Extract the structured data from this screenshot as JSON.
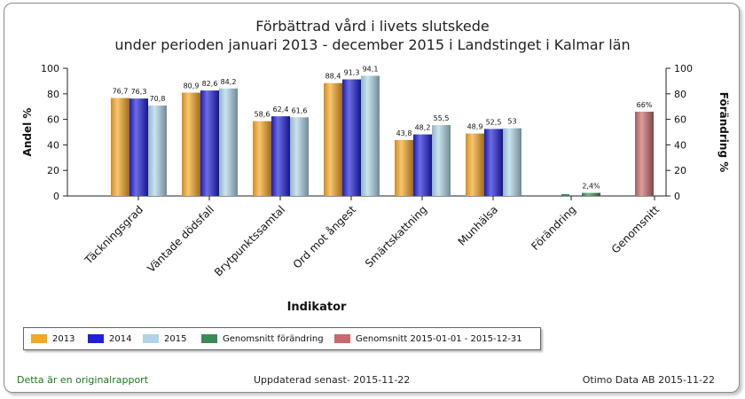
{
  "chart_data": {
    "type": "bar",
    "title": "Förbättrad vård i livets slutskede",
    "subtitle": "under perioden januari 2013 - december 2015 i   Landstinget i Kalmar län",
    "xlabel": "Indikator",
    "ylabel": "Andel %",
    "ylabel_right": "Förändring %",
    "ylim": [
      0,
      100
    ],
    "yticks": [
      0,
      20,
      40,
      60,
      80,
      100
    ],
    "grid": false,
    "legend_position": "bottom",
    "categories": [
      "Täckningsgrad",
      "Väntade dödsfall",
      "Brytpunktssamtal",
      "Ord mot ångest",
      "Smärtskattning",
      "Munhälsa"
    ],
    "series": [
      {
        "name": "2013",
        "color": "#f5a623",
        "values": [
          76.7,
          80.9,
          58.6,
          88.4,
          43.8,
          48.9
        ],
        "labels": [
          "76,7",
          "80,9",
          "58,6",
          "88,4",
          "43,8",
          "48,9"
        ]
      },
      {
        "name": "2014",
        "color": "#1f1fd6",
        "values": [
          76.3,
          82.6,
          62.4,
          91.3,
          48.2,
          52.5
        ],
        "labels": [
          "76,3",
          "82,6",
          "62,4",
          "91,3",
          "48,2",
          "52,5"
        ]
      },
      {
        "name": "2015",
        "color": "#aed4e6",
        "values": [
          70.8,
          84.2,
          61.6,
          94.1,
          55.5,
          53
        ],
        "labels": [
          "70,8",
          "84,2",
          "61,6",
          "94,1",
          "55,5",
          "53"
        ]
      }
    ],
    "right_axis": {
      "categories": [
        "Förändring",
        "Genomsnitt"
      ],
      "series": [
        {
          "name": "Genomsnitt förändring",
          "color": "#3a8a5a",
          "value": 2.4,
          "label": "2,4%"
        },
        {
          "name": "Genomsnitt 2015-01-01 - 2015-12-31",
          "color": "#c86a6a",
          "value": 66,
          "label": "66%"
        }
      ]
    }
  },
  "footer": {
    "left": "Detta är en originalrapport",
    "center": "Uppdaterad senast- 2015-11-22",
    "right": "Otimo Data AB 2015-11-22"
  }
}
